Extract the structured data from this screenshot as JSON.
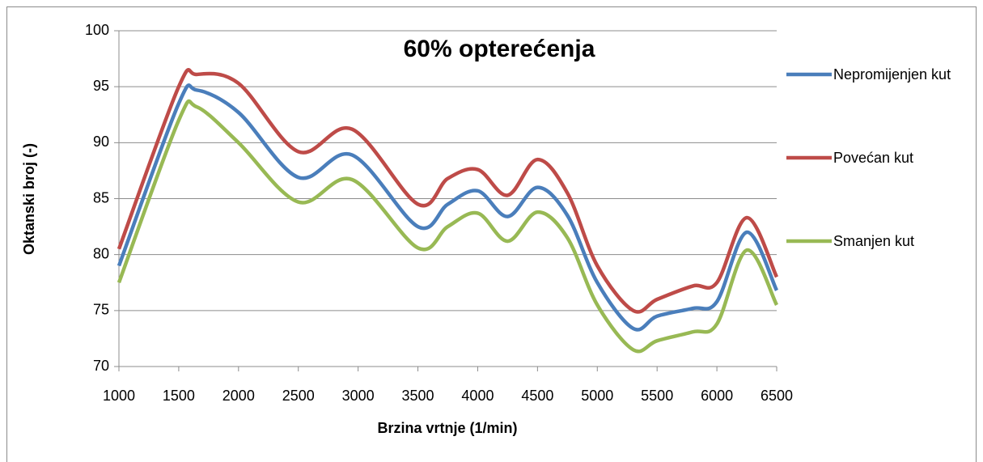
{
  "chart_data": {
    "type": "line",
    "title": "60% opterećenja",
    "x_label": "Brzina vrtnje (1/min)",
    "y_label": "Oktanski broj (-)",
    "x": [
      1000,
      1500,
      1650,
      2000,
      2500,
      2950,
      3500,
      3750,
      4000,
      4250,
      4500,
      4750,
      5000,
      5300,
      5500,
      5800,
      6000,
      6250,
      6500
    ],
    "series": [
      {
        "name": "Nepromijenjen kut",
        "color": "#4a7ebb",
        "values": [
          79,
          93.5,
          94.7,
          92.7,
          86.9,
          88.9,
          82.5,
          84.5,
          85.7,
          83.4,
          86,
          83.5,
          77.5,
          73.4,
          74.5,
          75.2,
          75.8,
          82,
          76.8
        ]
      },
      {
        "name": "Povećan kut",
        "color": "#be4b48",
        "values": [
          80.5,
          95,
          96.1,
          95.3,
          89.2,
          91.2,
          84.5,
          86.8,
          87.6,
          85.3,
          88.5,
          85.5,
          79,
          75,
          76,
          77.2,
          77.5,
          83.3,
          78
        ]
      },
      {
        "name": "Smanjen kut",
        "color": "#98b954",
        "values": [
          77.5,
          92,
          93.2,
          90,
          84.7,
          86.7,
          80.6,
          82.5,
          83.7,
          81.2,
          83.8,
          81.5,
          75.5,
          71.5,
          72.3,
          73.1,
          73.8,
          80.4,
          75.5
        ]
      }
    ],
    "xlim": [
      1000,
      6500
    ],
    "xticks": [
      1000,
      1500,
      2000,
      2500,
      3000,
      3500,
      4000,
      4500,
      5000,
      5500,
      6000,
      6500
    ],
    "ylim": [
      70,
      100
    ],
    "yticks": [
      70,
      75,
      80,
      85,
      90,
      95,
      100
    ],
    "grid": true
  }
}
